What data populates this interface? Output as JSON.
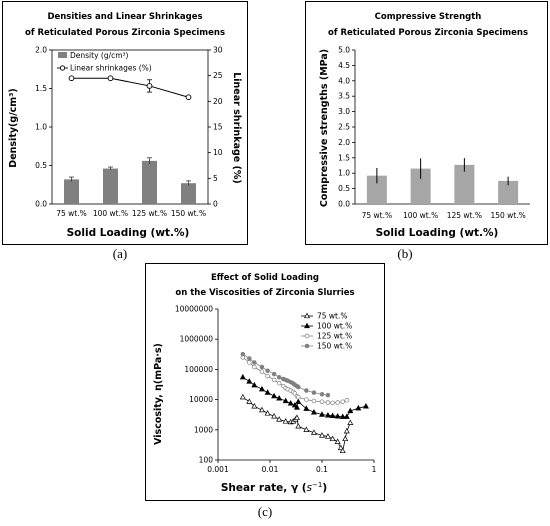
{
  "captions": {
    "a": "(a)",
    "b": "(b)",
    "c": "(c)"
  },
  "chart_data": [
    {
      "id": "a",
      "type": "bar",
      "title": "Densities and Linear Shrinkages",
      "subtitle": "of Reticulated Porous Zirconia Specimens",
      "xlabel": "Solid Loading (wt.%)",
      "ylabel": "Density(g/cm³)",
      "y2label": "Linear shrinkage (%)",
      "categories": [
        "75 wt.%",
        "100 wt.%",
        "125 wt.%",
        "150 wt.%"
      ],
      "ylim": [
        0,
        2.0
      ],
      "yticks": [
        "0.0",
        "0.5",
        "1.0",
        "1.5",
        "2.0"
      ],
      "y2lim": [
        0,
        30
      ],
      "y2ticks": [
        "0",
        "5",
        "10",
        "15",
        "20",
        "25",
        "30"
      ],
      "grid": false,
      "legend_position": "top-left",
      "series": [
        {
          "name": "Density (g/cm³)",
          "kind": "bar",
          "axis": "left",
          "values": [
            0.32,
            0.46,
            0.56,
            0.27
          ],
          "errors": [
            0.03,
            0.02,
            0.04,
            0.03
          ],
          "color": "#808080"
        },
        {
          "name": "Linear shrinkages (%)",
          "kind": "line",
          "axis": "right",
          "values": [
            24.5,
            24.5,
            23.0,
            20.8
          ],
          "errors": [
            0,
            0,
            1.2,
            0
          ],
          "color": "#000000"
        }
      ]
    },
    {
      "id": "b",
      "type": "bar",
      "title": "Compressive Strength",
      "subtitle": "of Reticulated Porous Zirconia Specimens",
      "xlabel": "Solid Loading (wt.%)",
      "ylabel": "Compressive strengths (MPa)",
      "categories": [
        "75 wt.%",
        "100 wt.%",
        "125 wt.%",
        "150 wt.%"
      ],
      "ylim": [
        0,
        5.0
      ],
      "yticks": [
        "0.0",
        "0.5",
        "1.0",
        "1.5",
        "2.0",
        "2.5",
        "3.0",
        "3.5",
        "4.0",
        "4.5",
        "5.0"
      ],
      "grid": false,
      "series": [
        {
          "name": "",
          "kind": "bar",
          "values": [
            0.92,
            1.15,
            1.27,
            0.75
          ],
          "errors": [
            0.25,
            0.33,
            0.22,
            0.14
          ],
          "color": "#a6a6a6"
        }
      ]
    },
    {
      "id": "c",
      "type": "line",
      "title": "Effect of Solid Loading",
      "subtitle": "on the Viscosities of Zirconia Slurries",
      "xlabel": "Shear rate, γ (",
      "xlabel_unit": "s",
      "xlabel_exp": "−1",
      "xlabel_end": ")",
      "ylabel": "Viscosity, η(mPa·s)",
      "x_scale": "log",
      "y_scale": "log",
      "xlim": [
        0.001,
        1
      ],
      "ylim": [
        100,
        10000000
      ],
      "xticks": [
        "0.001",
        "0.01",
        "0.1",
        "1"
      ],
      "yticks": [
        "100",
        "1000",
        "10000",
        "100000",
        "1000000",
        "10000000"
      ],
      "grid": false,
      "legend_position": "top-right",
      "series": [
        {
          "name": "75 wt.%",
          "marker": "triangle-open",
          "color": "#000000",
          "x": [
            0.003,
            0.004,
            0.005,
            0.007,
            0.009,
            0.012,
            0.015,
            0.02,
            0.025,
            0.028,
            0.031,
            0.033,
            0.035,
            0.05,
            0.07,
            0.1,
            0.13,
            0.16,
            0.2,
            0.23,
            0.25,
            0.28,
            0.3,
            0.35
          ],
          "y": [
            12000,
            8500,
            6000,
            4500,
            3500,
            2800,
            2200,
            1900,
            1800,
            1900,
            2200,
            2500,
            1300,
            1000,
            800,
            650,
            600,
            500,
            400,
            250,
            200,
            500,
            900,
            1700
          ]
        },
        {
          "name": "100 wt.%",
          "marker": "triangle-filled",
          "color": "#000000",
          "x": [
            0.003,
            0.004,
            0.005,
            0.007,
            0.009,
            0.012,
            0.015,
            0.02,
            0.025,
            0.03,
            0.033,
            0.035,
            0.05,
            0.07,
            0.1,
            0.13,
            0.16,
            0.2,
            0.25,
            0.3,
            0.35,
            0.5,
            0.7
          ],
          "y": [
            55000,
            40000,
            30000,
            22000,
            17000,
            13000,
            11000,
            9000,
            7500,
            6500,
            5500,
            8500,
            5000,
            3800,
            3200,
            3000,
            2900,
            2800,
            2700,
            2700,
            4200,
            5200,
            6000
          ]
        },
        {
          "name": "125 wt.%",
          "marker": "circle-open",
          "color": "#808080",
          "x": [
            0.003,
            0.004,
            0.005,
            0.007,
            0.009,
            0.012,
            0.015,
            0.018,
            0.02,
            0.022,
            0.025,
            0.028,
            0.03,
            0.033,
            0.035,
            0.05,
            0.07,
            0.1,
            0.13,
            0.16,
            0.2,
            0.25,
            0.3
          ],
          "y": [
            250000,
            170000,
            120000,
            85000,
            60000,
            45000,
            35000,
            28000,
            24000,
            22000,
            20000,
            18000,
            16000,
            13000,
            12000,
            10000,
            9000,
            8500,
            8000,
            7800,
            8000,
            8500,
            9500
          ]
        },
        {
          "name": "150 wt.%",
          "marker": "circle-filled",
          "color": "#808080",
          "x": [
            0.003,
            0.004,
            0.005,
            0.007,
            0.009,
            0.012,
            0.015,
            0.018,
            0.02,
            0.022,
            0.025,
            0.028,
            0.03,
            0.033,
            0.035,
            0.05,
            0.07,
            0.1,
            0.13
          ],
          "y": [
            320000,
            230000,
            170000,
            120000,
            90000,
            70000,
            55000,
            48000,
            45000,
            42000,
            38000,
            34000,
            31000,
            28000,
            26000,
            20000,
            17000,
            15000,
            14000
          ]
        }
      ]
    }
  ]
}
